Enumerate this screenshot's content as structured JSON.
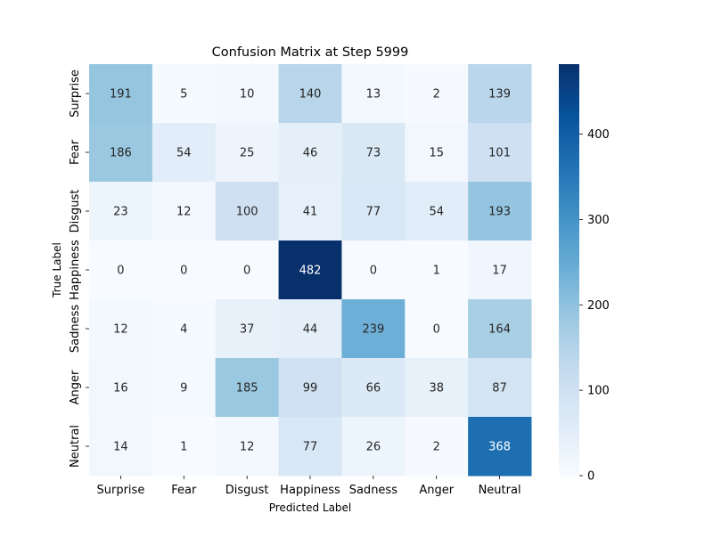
{
  "chart_data": {
    "type": "heatmap",
    "title": "Confusion Matrix at Step 5999",
    "xlabel": "Predicted Label",
    "ylabel": "True Label",
    "x_categories": [
      "Surprise",
      "Fear",
      "Disgust",
      "Happiness",
      "Sadness",
      "Anger",
      "Neutral"
    ],
    "y_categories": [
      "Surprise",
      "Fear",
      "Disgust",
      "Happiness",
      "Sadness",
      "Anger",
      "Neutral"
    ],
    "values": [
      [
        191,
        5,
        10,
        140,
        13,
        2,
        139
      ],
      [
        186,
        54,
        25,
        46,
        73,
        15,
        101
      ],
      [
        23,
        12,
        100,
        41,
        77,
        54,
        193
      ],
      [
        0,
        0,
        0,
        482,
        0,
        1,
        17
      ],
      [
        12,
        4,
        37,
        44,
        239,
        0,
        164
      ],
      [
        16,
        9,
        185,
        99,
        66,
        38,
        87
      ],
      [
        14,
        1,
        12,
        77,
        26,
        2,
        368
      ]
    ],
    "colorbar": {
      "min": 0,
      "max": 482,
      "ticks": [
        0,
        100,
        200,
        300,
        400
      ],
      "colormap": "Blues"
    },
    "annotations": true
  }
}
